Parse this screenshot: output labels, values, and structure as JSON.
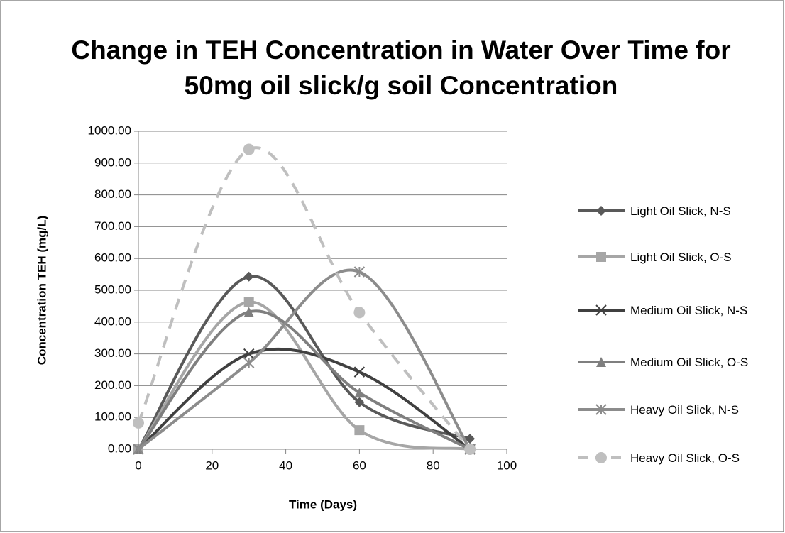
{
  "chart_data": {
    "type": "line",
    "title": "Change in TEH Concentration in Water Over Time for 50mg oil slick/g soil Concentration",
    "xlabel": "Time (Days)",
    "ylabel": "Concentration TEH (mg/L)",
    "x": [
      0,
      30,
      60,
      90
    ],
    "series": [
      {
        "name": "Light Oil Slick, N-S",
        "color": "#595959",
        "marker": "diamond",
        "dashed": false,
        "values": [
          0,
          543,
          148,
          33
        ]
      },
      {
        "name": "Light Oil Slick, O-S",
        "color": "#a6a6a6",
        "marker": "square",
        "dashed": false,
        "values": [
          0,
          463,
          60,
          0
        ]
      },
      {
        "name": "Medium Oil Slick, N-S",
        "color": "#404040",
        "marker": "x",
        "dashed": false,
        "values": [
          0,
          300,
          243,
          0
        ]
      },
      {
        "name": "Medium Oil Slick, O-S",
        "color": "#7f7f7f",
        "marker": "triangle",
        "dashed": false,
        "values": [
          0,
          432,
          178,
          0
        ]
      },
      {
        "name": "Heavy Oil Slick, N-S",
        "color": "#8c8c8c",
        "marker": "star",
        "dashed": false,
        "values": [
          0,
          272,
          558,
          0
        ]
      },
      {
        "name": "Heavy Oil Slick, O-S",
        "color": "#bfbfbf",
        "marker": "circle",
        "dashed": true,
        "values": [
          83,
          943,
          430,
          0
        ]
      }
    ],
    "xlim": [
      0,
      100
    ],
    "xticks": [
      0,
      20,
      40,
      60,
      80,
      100
    ],
    "ylim": [
      0,
      1000
    ],
    "yticks": [
      {
        "value": 0,
        "label": "0.00"
      },
      {
        "value": 100,
        "label": "100.00"
      },
      {
        "value": 200,
        "label": "200.00"
      },
      {
        "value": 300,
        "label": "300.00"
      },
      {
        "value": 400,
        "label": "400.00"
      },
      {
        "value": 500,
        "label": "500.00"
      },
      {
        "value": 600,
        "label": "600.00"
      },
      {
        "value": 700,
        "label": "700.00"
      },
      {
        "value": 800,
        "label": "800.00"
      },
      {
        "value": 900,
        "label": "900.00"
      },
      {
        "value": 1000,
        "label": "1000.00"
      }
    ],
    "grid": true,
    "legend": "right"
  }
}
